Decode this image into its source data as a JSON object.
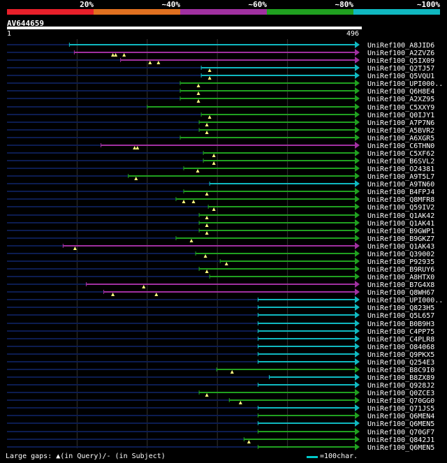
{
  "legend": {
    "segments": [
      {
        "label": "20%",
        "color": "#e8202a"
      },
      {
        "label": "~40%",
        "color": "#e07020"
      },
      {
        "label": "~60%",
        "color": "#a030a0"
      },
      {
        "label": "~80%",
        "color": "#20a020"
      },
      {
        "label": "~100%",
        "color": "#10b8c0"
      }
    ]
  },
  "query": {
    "name": "AV644659",
    "start": "1",
    "end": "496",
    "length": 496
  },
  "colors": {
    "magenta": "#a030a0",
    "green": "#20a020",
    "cyan": "#10b8c0",
    "track": "#0c1c50",
    "gridline": "#333333",
    "marker": "#ffff80"
  },
  "hits": [
    {
      "name": "UniRef100_A8JID6",
      "start": 89,
      "color": "cyan",
      "markers": []
    },
    {
      "name": "UniRef100_A2ZVZ6",
      "start": 96,
      "color": "magenta",
      "markers": [
        151,
        155,
        167
      ]
    },
    {
      "name": "UniRef100_Q5IX09",
      "start": 162,
      "color": "magenta",
      "markers": [
        204,
        216
      ]
    },
    {
      "name": "UniRef100_Q2TJ57",
      "start": 277,
      "color": "cyan",
      "markers": [
        289
      ]
    },
    {
      "name": "UniRef100_Q5VQU1",
      "start": 277,
      "color": "cyan",
      "markers": [
        289
      ]
    },
    {
      "name": "UniRef100_UPI000..",
      "start": 247,
      "color": "green",
      "markers": [
        273
      ]
    },
    {
      "name": "UniRef100_Q6H8E4",
      "start": 247,
      "color": "green",
      "markers": [
        273
      ]
    },
    {
      "name": "UniRef100_A2XZ95",
      "start": 247,
      "color": "green",
      "markers": [
        273
      ]
    },
    {
      "name": "UniRef100_C5XXY9",
      "start": 200,
      "color": "green",
      "markers": []
    },
    {
      "name": "UniRef100_Q0IJY1",
      "start": 277,
      "color": "green",
      "markers": [
        289
      ]
    },
    {
      "name": "UniRef100_A7P7N6",
      "start": 274,
      "color": "green",
      "markers": [
        285
      ]
    },
    {
      "name": "UniRef100_A5BVR2",
      "start": 274,
      "color": "green",
      "markers": [
        285
      ]
    },
    {
      "name": "UniRef100_A6XGR5",
      "start": 247,
      "color": "green",
      "markers": []
    },
    {
      "name": "UniRef100_C6THN0",
      "start": 134,
      "color": "magenta",
      "markers": [
        182,
        186
      ]
    },
    {
      "name": "UniRef100_C5XF62",
      "start": 280,
      "color": "green",
      "markers": [
        295
      ]
    },
    {
      "name": "UniRef100_B6SVL2",
      "start": 280,
      "color": "green",
      "markers": [
        295
      ]
    },
    {
      "name": "UniRef100_O24381",
      "start": 252,
      "color": "green",
      "markers": [
        272
      ]
    },
    {
      "name": "UniRef100_A9T5L7",
      "start": 173,
      "color": "green",
      "markers": [
        184
      ]
    },
    {
      "name": "UniRef100_A9TN60",
      "start": 289,
      "color": "cyan",
      "markers": []
    },
    {
      "name": "UniRef100_B4FPJ4",
      "start": 252,
      "color": "green",
      "markers": [
        285
      ]
    },
    {
      "name": "UniRef100_Q8MFR8",
      "start": 241,
      "color": "green",
      "markers": [
        252,
        266
      ]
    },
    {
      "name": "UniRef100_Q59IV2",
      "start": 287,
      "color": "green",
      "markers": [
        295
      ]
    },
    {
      "name": "UniRef100_Q1AK42",
      "start": 274,
      "color": "green",
      "markers": [
        285
      ]
    },
    {
      "name": "UniRef100_Q1AK41",
      "start": 274,
      "color": "green",
      "markers": [
        285
      ]
    },
    {
      "name": "UniRef100_B9GWP1",
      "start": 274,
      "color": "green",
      "markers": [
        285
      ]
    },
    {
      "name": "UniRef100_B9GKZ7",
      "start": 241,
      "color": "green",
      "markers": [
        263
      ]
    },
    {
      "name": "UniRef100_Q1AK43",
      "start": 80,
      "color": "magenta",
      "markers": [
        97
      ]
    },
    {
      "name": "UniRef100_Q39002",
      "start": 269,
      "color": "green",
      "markers": [
        283
      ]
    },
    {
      "name": "UniRef100_P92935",
      "start": 304,
      "color": "green",
      "markers": [
        313
      ]
    },
    {
      "name": "UniRef100_B9RUY6",
      "start": 274,
      "color": "green",
      "markers": [
        285
      ]
    },
    {
      "name": "UniRef100_A8HTX0",
      "start": 289,
      "color": "green",
      "markers": []
    },
    {
      "name": "UniRef100_B7G4X8",
      "start": 113,
      "color": "magenta",
      "markers": [
        195
      ]
    },
    {
      "name": "UniRef100_Q8WH67",
      "start": 138,
      "color": "magenta",
      "markers": [
        151,
        213
      ]
    },
    {
      "name": "UniRef100_UPI000..",
      "start": 358,
      "color": "cyan",
      "markers": []
    },
    {
      "name": "UniRef100_Q823H5",
      "start": 358,
      "color": "cyan",
      "markers": []
    },
    {
      "name": "UniRef100_Q5L657",
      "start": 358,
      "color": "cyan",
      "markers": []
    },
    {
      "name": "UniRef100_B0B9H3",
      "start": 358,
      "color": "cyan",
      "markers": []
    },
    {
      "name": "UniRef100_C4PP75",
      "start": 358,
      "color": "cyan",
      "markers": []
    },
    {
      "name": "UniRef100_C4PLR8",
      "start": 358,
      "color": "cyan",
      "markers": []
    },
    {
      "name": "UniRef100_O84068",
      "start": 358,
      "color": "cyan",
      "markers": []
    },
    {
      "name": "UniRef100_Q9PKX5",
      "start": 358,
      "color": "cyan",
      "markers": []
    },
    {
      "name": "UniRef100_Q254E3",
      "start": 358,
      "color": "cyan",
      "markers": []
    },
    {
      "name": "UniRef100_B8C9I0",
      "start": 299,
      "color": "green",
      "markers": [
        321
      ]
    },
    {
      "name": "UniRef100_B8ZX89",
      "start": 374,
      "color": "cyan",
      "markers": []
    },
    {
      "name": "UniRef100_Q928J2",
      "start": 358,
      "color": "cyan",
      "markers": []
    },
    {
      "name": "UniRef100_Q0ZCE3",
      "start": 274,
      "color": "green",
      "markers": [
        285
      ]
    },
    {
      "name": "UniRef100_Q70GG0",
      "start": 317,
      "color": "green",
      "markers": [
        333
      ]
    },
    {
      "name": "UniRef100_Q71JS5",
      "start": 358,
      "color": "cyan",
      "markers": []
    },
    {
      "name": "UniRef100_Q6MEN4",
      "start": 358,
      "color": "green",
      "markers": []
    },
    {
      "name": "UniRef100_Q6MEN5",
      "start": 358,
      "color": "cyan",
      "markers": []
    },
    {
      "name": "UniRef100_Q70GF7",
      "start": 358,
      "color": "green",
      "markers": []
    },
    {
      "name": "UniRef100_Q842J1",
      "start": 338,
      "color": "green",
      "markers": [
        345
      ]
    },
    {
      "name": "UniRef100_Q6MEN5",
      "start": 358,
      "color": "green",
      "markers": []
    }
  ],
  "footer": {
    "gaps_text": "Large gaps: ▲(in Query)/- (in Subject)",
    "scale_text": "=100char."
  }
}
